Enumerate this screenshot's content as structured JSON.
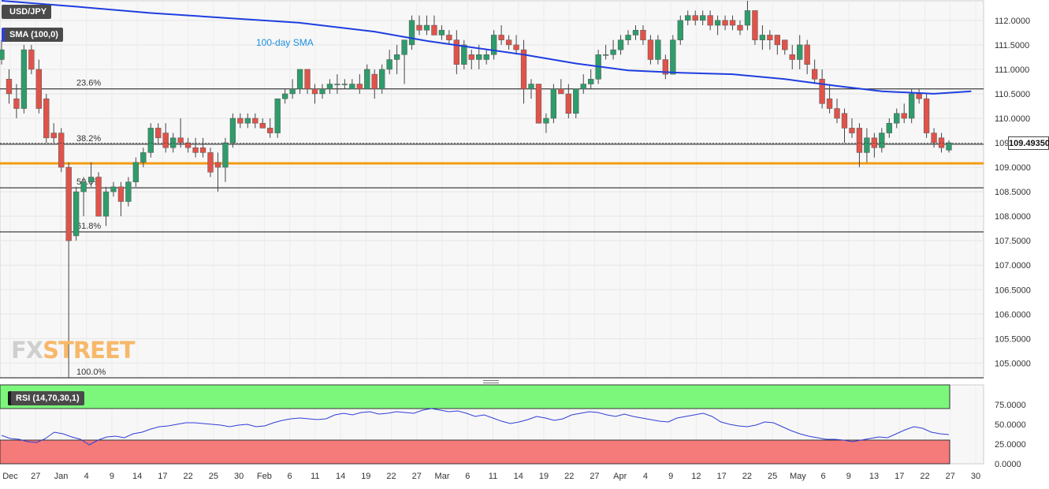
{
  "header": {
    "pair_label": "USD/JPY",
    "sma_label": "SMA (100,0)",
    "rsi_label": "RSI (14,70,30,1)"
  },
  "last_price": "109.49350",
  "logo": {
    "part1": "FX",
    "part2": "STREET"
  },
  "colors": {
    "up": "#2f9c6b",
    "down": "#e0534a",
    "sma": "#1f3ee0",
    "support": "#f39c12",
    "rsi_line": "#2f3ed8",
    "rsi_overbought": "#7cf77c",
    "rsi_oversold": "#f57a7a"
  },
  "chart_data": [
    {
      "type": "candlestick",
      "title": "USD/JPY",
      "ylim": [
        104.7,
        112.4
      ],
      "y_ticks": [
        "112.0000",
        "111.5000",
        "111.0000",
        "110.5000",
        "110.0000",
        "109.5000",
        "109.0000",
        "108.5000",
        "108.0000",
        "107.5000",
        "107.0000",
        "106.5000",
        "106.0000",
        "105.5000",
        "105.0000"
      ],
      "x_ticks": [
        "Dec",
        "27",
        "Jan",
        "4",
        "9",
        "14",
        "17",
        "22",
        "25",
        "30",
        "Feb",
        "6",
        "11",
        "14",
        "19",
        "22",
        "27",
        "Mar",
        "6",
        "11",
        "14",
        "19",
        "22",
        "27",
        "Apr",
        "4",
        "9",
        "12",
        "17",
        "22",
        "25",
        "May",
        "6",
        "9",
        "13",
        "17",
        "22",
        "27",
        "30"
      ],
      "fibonacci": [
        {
          "label": "23.6%",
          "value": 110.6
        },
        {
          "label": "38.2%",
          "value": 109.47
        },
        {
          "label": "50.0%",
          "value": 108.58
        },
        {
          "label": "61.8%",
          "value": 107.68
        },
        {
          "label": "100.0%",
          "value": 104.7
        }
      ],
      "support_level": 109.08,
      "sma_label_text": "100-day SMA",
      "candles": [
        {
          "o": 111.2,
          "h": 111.6,
          "l": 111.1,
          "c": 111.4
        },
        {
          "o": 110.8,
          "h": 111.0,
          "l": 110.3,
          "c": 110.5
        },
        {
          "o": 110.4,
          "h": 110.7,
          "l": 110.0,
          "c": 110.2
        },
        {
          "o": 110.2,
          "h": 111.5,
          "l": 110.1,
          "c": 111.4
        },
        {
          "o": 111.4,
          "h": 111.5,
          "l": 110.9,
          "c": 111.0
        },
        {
          "o": 111.0,
          "h": 111.2,
          "l": 110.1,
          "c": 110.2
        },
        {
          "o": 110.4,
          "h": 110.5,
          "l": 109.5,
          "c": 109.6
        },
        {
          "o": 109.7,
          "h": 109.9,
          "l": 109.5,
          "c": 109.6
        },
        {
          "o": 109.7,
          "h": 109.8,
          "l": 108.9,
          "c": 109.0
        },
        {
          "o": 109.0,
          "h": 109.1,
          "l": 104.7,
          "c": 107.5
        },
        {
          "o": 107.6,
          "h": 108.6,
          "l": 107.5,
          "c": 108.5
        },
        {
          "o": 108.5,
          "h": 108.8,
          "l": 108.0,
          "c": 108.7
        },
        {
          "o": 108.7,
          "h": 109.1,
          "l": 108.6,
          "c": 108.8
        },
        {
          "o": 108.8,
          "h": 108.9,
          "l": 108.0,
          "c": 108.0
        },
        {
          "o": 108.0,
          "h": 108.6,
          "l": 107.8,
          "c": 108.5
        },
        {
          "o": 108.5,
          "h": 108.7,
          "l": 108.4,
          "c": 108.6
        },
        {
          "o": 108.6,
          "h": 108.7,
          "l": 108.0,
          "c": 108.3
        },
        {
          "o": 108.3,
          "h": 108.8,
          "l": 108.2,
          "c": 108.7
        },
        {
          "o": 108.7,
          "h": 109.2,
          "l": 108.6,
          "c": 109.1
        },
        {
          "o": 109.1,
          "h": 109.4,
          "l": 109.0,
          "c": 109.3
        },
        {
          "o": 109.3,
          "h": 109.9,
          "l": 109.2,
          "c": 109.8
        },
        {
          "o": 109.8,
          "h": 109.9,
          "l": 109.5,
          "c": 109.6
        },
        {
          "o": 109.7,
          "h": 109.9,
          "l": 109.3,
          "c": 109.4
        },
        {
          "o": 109.4,
          "h": 109.7,
          "l": 109.3,
          "c": 109.6
        },
        {
          "o": 109.6,
          "h": 110.0,
          "l": 109.4,
          "c": 109.5
        },
        {
          "o": 109.5,
          "h": 109.6,
          "l": 109.3,
          "c": 109.4
        },
        {
          "o": 109.4,
          "h": 109.6,
          "l": 109.2,
          "c": 109.3
        },
        {
          "o": 109.4,
          "h": 109.6,
          "l": 109.2,
          "c": 109.3
        },
        {
          "o": 109.3,
          "h": 109.4,
          "l": 108.8,
          "c": 108.9
        },
        {
          "o": 109.1,
          "h": 109.3,
          "l": 108.5,
          "c": 109.0
        },
        {
          "o": 109.0,
          "h": 109.6,
          "l": 108.7,
          "c": 109.5
        },
        {
          "o": 109.5,
          "h": 110.1,
          "l": 109.4,
          "c": 110.0
        },
        {
          "o": 110.0,
          "h": 110.1,
          "l": 109.8,
          "c": 109.9
        },
        {
          "o": 109.9,
          "h": 110.1,
          "l": 109.8,
          "c": 110.0
        },
        {
          "o": 110.0,
          "h": 110.1,
          "l": 109.8,
          "c": 109.9
        },
        {
          "o": 109.9,
          "h": 110.0,
          "l": 109.8,
          "c": 109.8
        },
        {
          "o": 109.8,
          "h": 110.0,
          "l": 109.6,
          "c": 109.7
        },
        {
          "o": 109.7,
          "h": 110.4,
          "l": 109.6,
          "c": 110.4
        },
        {
          "o": 110.4,
          "h": 110.6,
          "l": 110.3,
          "c": 110.5
        },
        {
          "o": 110.5,
          "h": 110.8,
          "l": 110.4,
          "c": 110.6
        },
        {
          "o": 110.6,
          "h": 111.0,
          "l": 110.5,
          "c": 111.0
        },
        {
          "o": 111.0,
          "h": 111.0,
          "l": 110.5,
          "c": 110.6
        },
        {
          "o": 110.6,
          "h": 110.7,
          "l": 110.3,
          "c": 110.5
        },
        {
          "o": 110.5,
          "h": 110.7,
          "l": 110.4,
          "c": 110.6
        },
        {
          "o": 110.6,
          "h": 110.8,
          "l": 110.5,
          "c": 110.7
        },
        {
          "o": 110.7,
          "h": 110.9,
          "l": 110.5,
          "c": 110.7
        },
        {
          "o": 110.7,
          "h": 110.8,
          "l": 110.6,
          "c": 110.7
        },
        {
          "o": 110.6,
          "h": 110.8,
          "l": 110.6,
          "c": 110.7
        },
        {
          "o": 110.7,
          "h": 110.9,
          "l": 110.5,
          "c": 110.6
        },
        {
          "o": 110.6,
          "h": 111.1,
          "l": 110.6,
          "c": 111.0
        },
        {
          "o": 110.9,
          "h": 111.0,
          "l": 110.4,
          "c": 110.6
        },
        {
          "o": 110.6,
          "h": 111.1,
          "l": 110.5,
          "c": 111.0
        },
        {
          "o": 111.0,
          "h": 111.4,
          "l": 110.9,
          "c": 111.2
        },
        {
          "o": 111.2,
          "h": 111.5,
          "l": 110.9,
          "c": 111.3
        },
        {
          "o": 111.3,
          "h": 111.6,
          "l": 110.7,
          "c": 111.6
        },
        {
          "o": 111.5,
          "h": 112.1,
          "l": 111.4,
          "c": 112.0
        },
        {
          "o": 111.9,
          "h": 112.1,
          "l": 111.7,
          "c": 111.8
        },
        {
          "o": 111.8,
          "h": 112.1,
          "l": 111.7,
          "c": 111.9
        },
        {
          "o": 111.9,
          "h": 112.1,
          "l": 111.7,
          "c": 111.7
        },
        {
          "o": 111.7,
          "h": 111.9,
          "l": 111.6,
          "c": 111.8
        },
        {
          "o": 111.7,
          "h": 111.8,
          "l": 111.5,
          "c": 111.6
        },
        {
          "o": 111.6,
          "h": 111.8,
          "l": 110.9,
          "c": 111.1
        },
        {
          "o": 111.1,
          "h": 111.6,
          "l": 111.0,
          "c": 111.5
        },
        {
          "o": 111.3,
          "h": 111.4,
          "l": 111.0,
          "c": 111.2
        },
        {
          "o": 111.2,
          "h": 111.5,
          "l": 111.0,
          "c": 111.3
        },
        {
          "o": 111.2,
          "h": 111.4,
          "l": 111.1,
          "c": 111.3
        },
        {
          "o": 111.3,
          "h": 111.8,
          "l": 111.2,
          "c": 111.7
        },
        {
          "o": 111.7,
          "h": 111.9,
          "l": 111.5,
          "c": 111.6
        },
        {
          "o": 111.6,
          "h": 111.7,
          "l": 111.4,
          "c": 111.5
        },
        {
          "o": 111.5,
          "h": 111.7,
          "l": 111.3,
          "c": 111.4
        },
        {
          "o": 111.4,
          "h": 111.6,
          "l": 110.3,
          "c": 110.6
        },
        {
          "o": 110.6,
          "h": 110.8,
          "l": 110.4,
          "c": 110.7
        },
        {
          "o": 110.7,
          "h": 110.7,
          "l": 109.9,
          "c": 109.9
        },
        {
          "o": 109.9,
          "h": 110.1,
          "l": 109.7,
          "c": 110.0
        },
        {
          "o": 110.0,
          "h": 110.7,
          "l": 109.9,
          "c": 110.6
        },
        {
          "o": 110.6,
          "h": 110.8,
          "l": 110.5,
          "c": 110.5
        },
        {
          "o": 110.5,
          "h": 110.7,
          "l": 110.0,
          "c": 110.1
        },
        {
          "o": 110.1,
          "h": 110.6,
          "l": 110.0,
          "c": 110.6
        },
        {
          "o": 110.6,
          "h": 110.9,
          "l": 110.5,
          "c": 110.7
        },
        {
          "o": 110.7,
          "h": 111.0,
          "l": 110.6,
          "c": 110.8
        },
        {
          "o": 110.8,
          "h": 111.4,
          "l": 110.7,
          "c": 111.3
        },
        {
          "o": 111.3,
          "h": 111.5,
          "l": 111.2,
          "c": 111.3
        },
        {
          "o": 111.3,
          "h": 111.6,
          "l": 111.2,
          "c": 111.4
        },
        {
          "o": 111.4,
          "h": 111.7,
          "l": 111.3,
          "c": 111.6
        },
        {
          "o": 111.6,
          "h": 111.8,
          "l": 111.5,
          "c": 111.7
        },
        {
          "o": 111.7,
          "h": 111.9,
          "l": 111.6,
          "c": 111.8
        },
        {
          "o": 111.8,
          "h": 111.9,
          "l": 111.5,
          "c": 111.6
        },
        {
          "o": 111.6,
          "h": 111.7,
          "l": 111.1,
          "c": 111.2
        },
        {
          "o": 111.2,
          "h": 111.7,
          "l": 111.1,
          "c": 111.6
        },
        {
          "o": 111.2,
          "h": 111.3,
          "l": 110.8,
          "c": 110.9
        },
        {
          "o": 110.9,
          "h": 111.7,
          "l": 110.9,
          "c": 111.6
        },
        {
          "o": 111.6,
          "h": 112.1,
          "l": 111.5,
          "c": 112.0
        },
        {
          "o": 112.0,
          "h": 112.2,
          "l": 111.9,
          "c": 112.1
        },
        {
          "o": 112.1,
          "h": 112.2,
          "l": 111.9,
          "c": 112.0
        },
        {
          "o": 112.0,
          "h": 112.2,
          "l": 111.9,
          "c": 112.1
        },
        {
          "o": 112.1,
          "h": 112.2,
          "l": 111.8,
          "c": 111.9
        },
        {
          "o": 111.9,
          "h": 112.1,
          "l": 111.7,
          "c": 112.0
        },
        {
          "o": 112.0,
          "h": 112.1,
          "l": 111.8,
          "c": 111.9
        },
        {
          "o": 112.0,
          "h": 112.1,
          "l": 111.8,
          "c": 111.9
        },
        {
          "o": 111.9,
          "h": 112.0,
          "l": 111.7,
          "c": 111.8
        },
        {
          "o": 111.9,
          "h": 112.4,
          "l": 111.8,
          "c": 112.2
        },
        {
          "o": 112.2,
          "h": 112.2,
          "l": 111.5,
          "c": 111.6
        },
        {
          "o": 111.6,
          "h": 111.9,
          "l": 111.4,
          "c": 111.7
        },
        {
          "o": 111.7,
          "h": 111.8,
          "l": 111.4,
          "c": 111.6
        },
        {
          "o": 111.7,
          "h": 111.7,
          "l": 111.3,
          "c": 111.5
        },
        {
          "o": 111.6,
          "h": 111.6,
          "l": 111.3,
          "c": 111.4
        },
        {
          "o": 111.3,
          "h": 111.5,
          "l": 111.0,
          "c": 111.2
        },
        {
          "o": 111.2,
          "h": 111.7,
          "l": 111.0,
          "c": 111.5
        },
        {
          "o": 111.5,
          "h": 111.6,
          "l": 110.9,
          "c": 111.1
        },
        {
          "o": 111.0,
          "h": 111.2,
          "l": 110.7,
          "c": 110.8
        },
        {
          "o": 110.8,
          "h": 111.0,
          "l": 110.2,
          "c": 110.3
        },
        {
          "o": 110.4,
          "h": 110.7,
          "l": 110.1,
          "c": 110.2
        },
        {
          "o": 110.2,
          "h": 110.4,
          "l": 109.9,
          "c": 110.0
        },
        {
          "o": 110.1,
          "h": 110.2,
          "l": 109.5,
          "c": 109.8
        },
        {
          "o": 109.8,
          "h": 110.0,
          "l": 109.6,
          "c": 109.7
        },
        {
          "o": 109.8,
          "h": 109.9,
          "l": 109.0,
          "c": 109.3
        },
        {
          "o": 109.3,
          "h": 109.8,
          "l": 109.1,
          "c": 109.6
        },
        {
          "o": 109.6,
          "h": 109.7,
          "l": 109.2,
          "c": 109.4
        },
        {
          "o": 109.4,
          "h": 109.8,
          "l": 109.3,
          "c": 109.7
        },
        {
          "o": 109.7,
          "h": 110.0,
          "l": 109.6,
          "c": 109.9
        },
        {
          "o": 109.9,
          "h": 110.2,
          "l": 109.8,
          "c": 110.1
        },
        {
          "o": 110.1,
          "h": 110.3,
          "l": 109.9,
          "c": 110.0
        },
        {
          "o": 110.0,
          "h": 110.6,
          "l": 109.9,
          "c": 110.5
        },
        {
          "o": 110.5,
          "h": 110.6,
          "l": 110.3,
          "c": 110.4
        },
        {
          "o": 110.4,
          "h": 110.5,
          "l": 109.6,
          "c": 109.7
        },
        {
          "o": 109.7,
          "h": 109.8,
          "l": 109.4,
          "c": 109.5
        },
        {
          "o": 109.6,
          "h": 109.7,
          "l": 109.3,
          "c": 109.4
        },
        {
          "o": 109.35,
          "h": 109.55,
          "l": 109.3,
          "c": 109.5
        }
      ],
      "sma": [
        {
          "i": 0,
          "v": 112.4
        },
        {
          "i": 10,
          "v": 112.28
        },
        {
          "i": 20,
          "v": 112.15
        },
        {
          "i": 30,
          "v": 112.05
        },
        {
          "i": 40,
          "v": 111.95
        },
        {
          "i": 50,
          "v": 111.77
        },
        {
          "i": 57,
          "v": 111.58
        },
        {
          "i": 63,
          "v": 111.45
        },
        {
          "i": 70,
          "v": 111.3
        },
        {
          "i": 77,
          "v": 111.12
        },
        {
          "i": 84,
          "v": 110.98
        },
        {
          "i": 91,
          "v": 110.93
        },
        {
          "i": 98,
          "v": 110.9
        },
        {
          "i": 105,
          "v": 110.8
        },
        {
          "i": 112,
          "v": 110.66
        },
        {
          "i": 118,
          "v": 110.55
        },
        {
          "i": 125,
          "v": 110.5
        },
        {
          "i": 130,
          "v": 110.55
        }
      ]
    },
    {
      "type": "line",
      "title": "RSI (14,70,30,1)",
      "ylim": [
        0,
        100
      ],
      "y_ticks": [
        "75.0000",
        "50.0000",
        "25.0000",
        "0.0000"
      ],
      "overbought": 70,
      "oversold": 30,
      "series": [
        {
          "values": [
            36,
            32,
            31,
            28,
            27,
            32,
            40,
            38,
            34,
            31,
            24,
            30,
            34,
            35,
            33,
            38,
            40,
            44,
            47,
            48,
            50,
            52,
            52,
            51,
            50,
            49,
            47,
            49,
            50,
            47,
            48,
            52,
            55,
            57,
            58,
            57,
            56,
            57,
            62,
            64,
            62,
            65,
            66,
            63,
            64,
            66,
            65,
            64,
            68,
            70,
            68,
            66,
            67,
            64,
            60,
            62,
            58,
            54,
            51,
            53,
            56,
            60,
            58,
            55,
            57,
            62,
            64,
            66,
            65,
            62,
            60,
            63,
            60,
            58,
            56,
            54,
            53,
            58,
            60,
            62,
            64,
            60,
            53,
            50,
            48,
            47,
            49,
            53,
            52,
            47,
            42,
            38,
            35,
            33,
            31,
            31,
            30,
            28,
            30,
            32,
            34,
            33,
            38,
            43,
            47,
            45,
            40,
            38,
            37
          ]
        }
      ]
    }
  ]
}
